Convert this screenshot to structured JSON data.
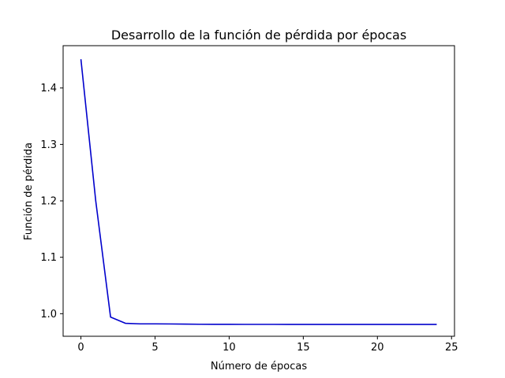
{
  "chart_data": {
    "type": "line",
    "title": "Desarrollo de la función de pérdida por épocas",
    "xlabel": "Número de épocas",
    "ylabel": "Función de pérdida",
    "xlim": [
      -1.2,
      25.2
    ],
    "ylim": [
      0.96,
      1.475
    ],
    "xticks": [
      0,
      5,
      10,
      15,
      20,
      25
    ],
    "yticks": [
      1.0,
      1.1,
      1.2,
      1.3,
      1.4
    ],
    "ytick_labels": [
      "1.0",
      "1.1",
      "1.2",
      "1.3",
      "1.4"
    ],
    "grid": false,
    "series": [
      {
        "color": "#0000cc",
        "x": [
          0,
          1,
          2,
          3,
          4,
          5,
          6,
          7,
          8,
          9,
          10,
          11,
          12,
          13,
          14,
          15,
          16,
          17,
          18,
          19,
          20,
          21,
          22,
          23,
          24
        ],
        "y": [
          1.451,
          1.2,
          0.994,
          0.983,
          0.982,
          0.982,
          0.9818,
          0.9815,
          0.9813,
          0.9812,
          0.9812,
          0.9811,
          0.9811,
          0.9811,
          0.981,
          0.981,
          0.981,
          0.981,
          0.981,
          0.981,
          0.981,
          0.981,
          0.981,
          0.981,
          0.981
        ]
      }
    ]
  }
}
